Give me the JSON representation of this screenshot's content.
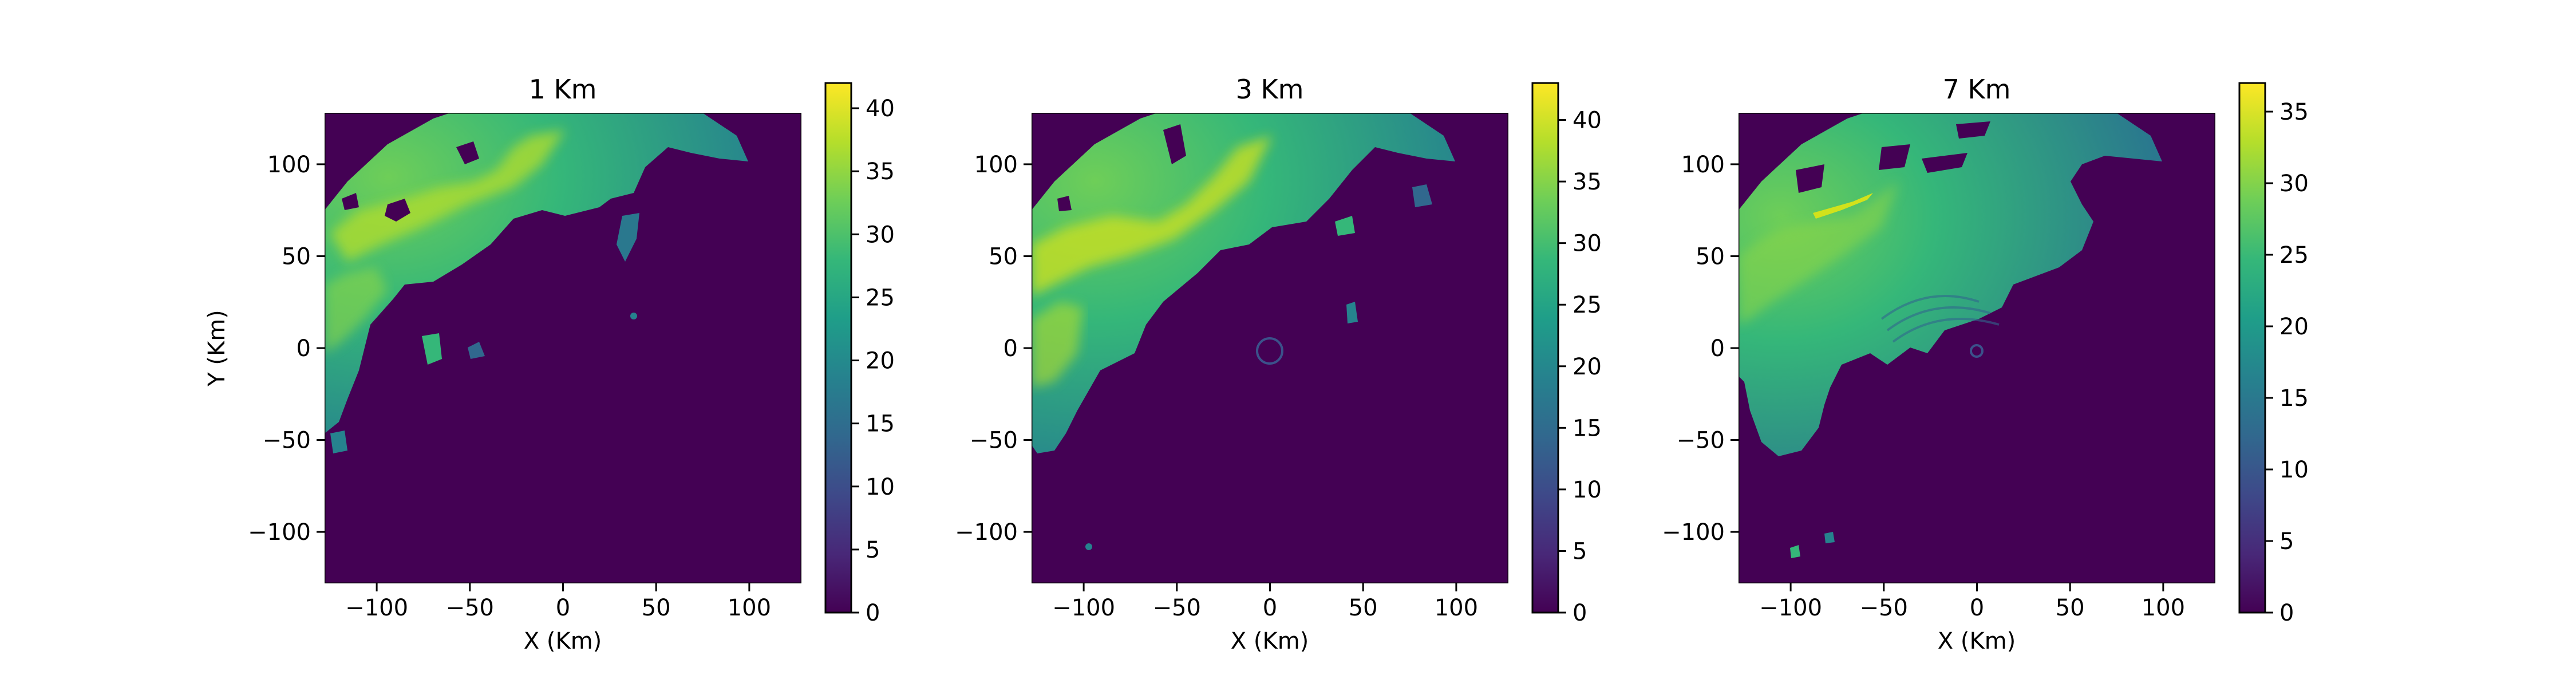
{
  "colormap": [
    "#440154",
    "#482878",
    "#3e4989",
    "#31688e",
    "#26828e",
    "#1f9e89",
    "#35b779",
    "#6ece58",
    "#b5de2b",
    "#fde725"
  ],
  "chart_data": [
    {
      "type": "heatmap",
      "title": "1 Km",
      "xlabel": "X (Km)",
      "ylabel": "Y (Km)",
      "xlim": [
        -128,
        128
      ],
      "ylim": [
        -128,
        128
      ],
      "xticks": [
        "−100",
        "−50",
        "0",
        "50",
        "100"
      ],
      "xtick_values": [
        -100,
        -50,
        0,
        50,
        100
      ],
      "yticks": [
        "−100",
        "−50",
        "0",
        "50",
        "100"
      ],
      "ytick_values": [
        -100,
        -50,
        0,
        50,
        100
      ],
      "colorbar": {
        "min": 0,
        "max": 42,
        "ticks": [
          "0",
          "5",
          "10",
          "15",
          "20",
          "25",
          "30",
          "35",
          "40"
        ],
        "tick_values": [
          0,
          5,
          10,
          15,
          20,
          25,
          30,
          35,
          40
        ]
      }
    },
    {
      "type": "heatmap",
      "title": "3 Km",
      "xlabel": "X (Km)",
      "ylabel": "",
      "xlim": [
        -128,
        128
      ],
      "ylim": [
        -128,
        128
      ],
      "xticks": [
        "−100",
        "−50",
        "0",
        "50",
        "100"
      ],
      "xtick_values": [
        -100,
        -50,
        0,
        50,
        100
      ],
      "yticks": [
        "−100",
        "−50",
        "0",
        "50",
        "100"
      ],
      "ytick_values": [
        -100,
        -50,
        0,
        50,
        100
      ],
      "colorbar": {
        "min": 0,
        "max": 43,
        "ticks": [
          "0",
          "5",
          "10",
          "15",
          "20",
          "25",
          "30",
          "35",
          "40"
        ],
        "tick_values": [
          0,
          5,
          10,
          15,
          20,
          25,
          30,
          35,
          40
        ]
      }
    },
    {
      "type": "heatmap",
      "title": "7 Km",
      "xlabel": "X (Km)",
      "ylabel": "",
      "xlim": [
        -128,
        128
      ],
      "ylim": [
        -128,
        128
      ],
      "xticks": [
        "−100",
        "−50",
        "0",
        "50",
        "100"
      ],
      "xtick_values": [
        -100,
        -50,
        0,
        50,
        100
      ],
      "yticks": [
        "−100",
        "−50",
        "0",
        "50",
        "100"
      ],
      "ytick_values": [
        -100,
        -50,
        0,
        50,
        100
      ],
      "colorbar": {
        "min": 0,
        "max": 37,
        "ticks": [
          "0",
          "5",
          "10",
          "15",
          "20",
          "25",
          "30",
          "35"
        ],
        "tick_values": [
          0,
          5,
          10,
          15,
          20,
          25,
          30,
          35
        ]
      }
    }
  ]
}
